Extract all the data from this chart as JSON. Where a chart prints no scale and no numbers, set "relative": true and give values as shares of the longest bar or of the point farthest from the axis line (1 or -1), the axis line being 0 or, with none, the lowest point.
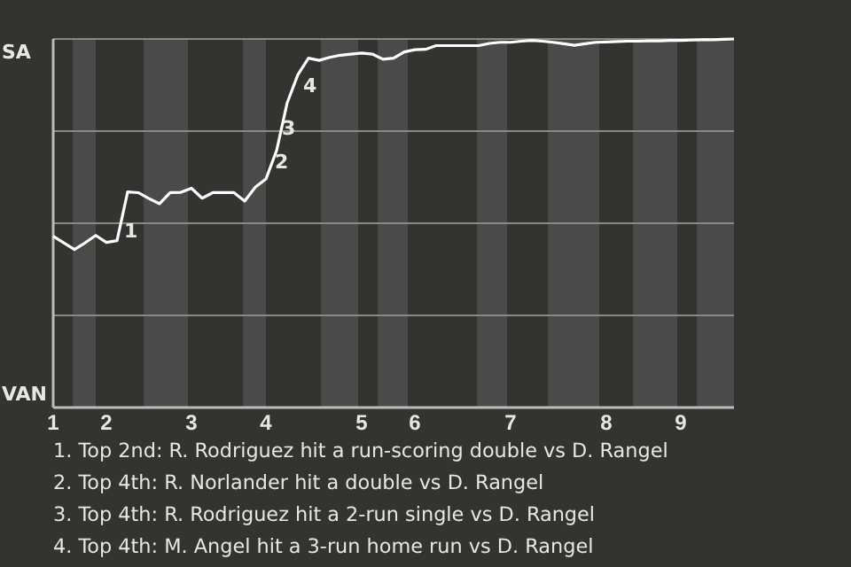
{
  "chart_data": {
    "type": "line",
    "relative": true,
    "categories": [
      "1",
      null,
      null,
      null,
      null,
      "2",
      null,
      null,
      null,
      null,
      null,
      null,
      null,
      "3",
      null,
      null,
      null,
      null,
      null,
      null,
      "4",
      null,
      null,
      null,
      null,
      null,
      null,
      null,
      null,
      "5",
      null,
      null,
      null,
      null,
      "6",
      null,
      null,
      null,
      null,
      null,
      null,
      null,
      null,
      "7",
      null,
      null,
      null,
      null,
      null,
      null,
      null,
      null,
      "8",
      null,
      null,
      null,
      null,
      null,
      null,
      "9",
      null,
      null,
      null,
      null,
      null
    ],
    "series": [
      {
        "color": "#ffffff",
        "values": [
          0.465,
          0.447,
          0.429,
          0.447,
          0.467,
          0.448,
          0.453,
          0.585,
          0.583,
          0.567,
          0.553,
          0.583,
          0.584,
          0.595,
          0.568,
          0.583,
          0.583,
          0.583,
          0.56,
          0.598,
          0.62,
          0.697,
          0.827,
          0.903,
          0.948,
          0.942,
          0.95,
          0.956,
          0.959,
          0.962,
          0.959,
          0.945,
          0.948,
          0.965,
          0.971,
          0.972,
          0.982,
          0.982,
          0.982,
          0.982,
          0.982,
          0.988,
          0.991,
          0.991,
          0.994,
          0.996,
          0.994,
          0.991,
          0.987,
          0.983,
          0.987,
          0.991,
          0.992,
          0.993,
          0.994,
          0.994,
          0.995,
          0.995,
          0.996,
          0.996,
          0.997,
          0.998,
          0.998,
          0.999,
          1
        ]
      }
    ],
    "marker": "none",
    "ref_lines": [
      {
        "axis": "y",
        "value": 0.25,
        "color": "#8a8885"
      },
      {
        "axis": "y",
        "value": 0.5,
        "color": "#8a8885"
      },
      {
        "axis": "y",
        "value": 0.75,
        "color": "#8a8885"
      },
      {
        "axis": "y",
        "value": 1,
        "color": "#8a8885"
      }
    ],
    "annotations": [
      "SA",
      "VAN",
      "1",
      "2",
      "3",
      "4",
      "1. Top 2nd: R. Rodriguez hit a run-scoring double vs D. Rangel",
      "2. Top 4th: R. Norlander hit a double vs D. Rangel",
      "3. Top 4th: R. Rodriguez hit a 2-run single vs D. Rangel",
      "4. Top 4th: M. Angel hit a 3-run home run vs D. Rangel"
    ]
  }
}
